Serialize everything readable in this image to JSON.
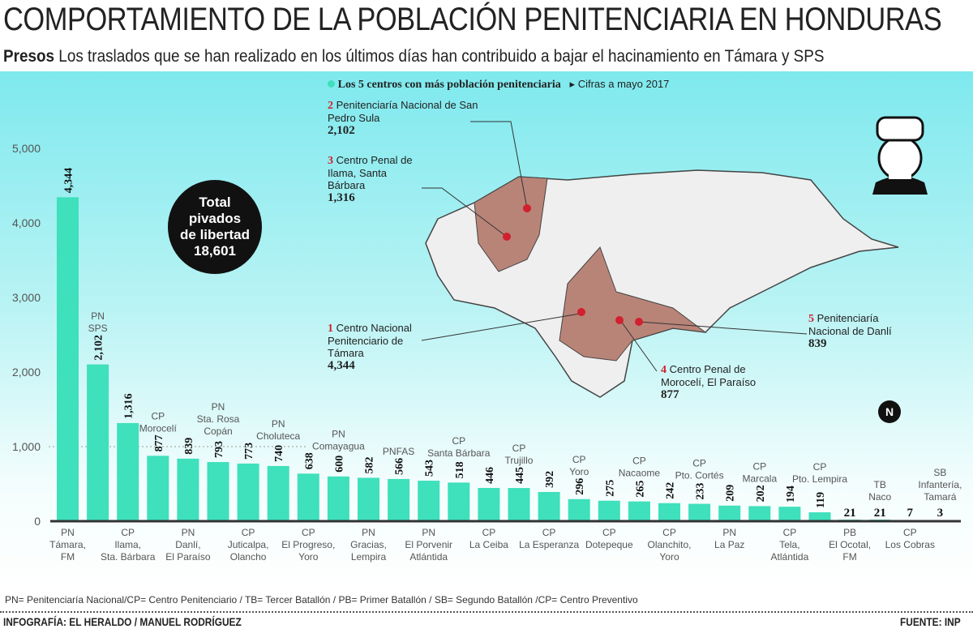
{
  "header": {
    "title": "COMPORTAMIENTO DE LA POBLACIÓN PENITENCIARIA EN HONDURAS",
    "kicker": "Presos",
    "subtitle": "Los traslados que se han realizado en los últimos días han contribuido a bajar el hacinamiento en Támara y SPS"
  },
  "legend": {
    "top5": "Los 5 centros con más población penitenciaria",
    "date": "Cifras a mayo 2017"
  },
  "total": {
    "label1": "Total",
    "label2": "pivados",
    "label3": "de libertad",
    "value": "18,601"
  },
  "map": {
    "north": "N",
    "centers": [
      {
        "rank": "1",
        "name": "Centro Nacional Penitenciario de Támara",
        "value": "4,344"
      },
      {
        "rank": "2",
        "name": "Penitenciaría Nacional de San Pedro Sula",
        "value": "2,102"
      },
      {
        "rank": "3",
        "name": "Centro Penal de Ilama, Santa Bárbara",
        "value": "1,316"
      },
      {
        "rank": "4",
        "name": "Centro Penal de Morocelí, El Paraíso",
        "value": "877"
      },
      {
        "rank": "5",
        "name": "Penitenciaría Nacional de Danlí",
        "value": "839"
      }
    ],
    "colors": {
      "highlight": "#b98478",
      "land": "#efefef"
    }
  },
  "chart_data": {
    "type": "bar",
    "ylim": [
      0,
      5000
    ],
    "yticks": [
      "0",
      "1,000",
      "2,000",
      "3,000",
      "4,000",
      "5,000"
    ],
    "grid": "dotted at 1,000 only",
    "bar_color": "#3fe0bc",
    "categories": [
      "PN Támara, FM",
      "PN SPS",
      "CP Ilama, Sta. Bárbara",
      "CP Morocelí",
      "PN Danlí, El Paraíso",
      "PN Sta. Rosa Copán",
      "CP Juticalpa, Olancho",
      "PN Choluteca",
      "CP El Progreso, Yoro",
      "PN Comayagua",
      "PN Gracias, Lempira",
      "PNFAS",
      "PN El Porvenir Atlántida",
      "CP Santa Bárbara",
      "CP La Ceiba",
      "CP Trujillo",
      "CP La Esperanza",
      "CP Yoro",
      "CP Dotepeque",
      "CP Nacaome",
      "CP Olanchito, Yoro",
      "CP Pto. Cortés",
      "PN La Paz",
      "CP Marcala",
      "CP Tela, Atlántida",
      "CP Pto. Lempira",
      "PB El Ocotal, FM",
      "TB Naco",
      "CP Los Cobras",
      "SB Infantería, Tamará"
    ],
    "values": [
      4344,
      2102,
      1316,
      877,
      839,
      793,
      773,
      740,
      638,
      600,
      582,
      566,
      543,
      518,
      446,
      445,
      392,
      296,
      275,
      265,
      242,
      233,
      209,
      202,
      194,
      119,
      21,
      21,
      7,
      3
    ],
    "value_labels": [
      "4,344",
      "2,102",
      "1,316",
      "877",
      "839",
      "793",
      "773",
      "740",
      "638",
      "600",
      "582",
      "566",
      "543",
      "518",
      "446",
      "445",
      "392",
      "296",
      "275",
      "265",
      "242",
      "233",
      "209",
      "202",
      "194",
      "119",
      "21",
      "21",
      "7",
      "3"
    ]
  },
  "footer": {
    "note": "PN= Penitenciaría Nacional/CP= Centro Penitenciario / TB= Tercer Batallón / PB= Primer Batallón / SB= Segundo Batallón /CP= Centro Preventivo",
    "credit": "INFOGRAFÍA: EL HERALDO / MANUEL RODRÍGUEZ",
    "source": "FUENTE: INP"
  }
}
